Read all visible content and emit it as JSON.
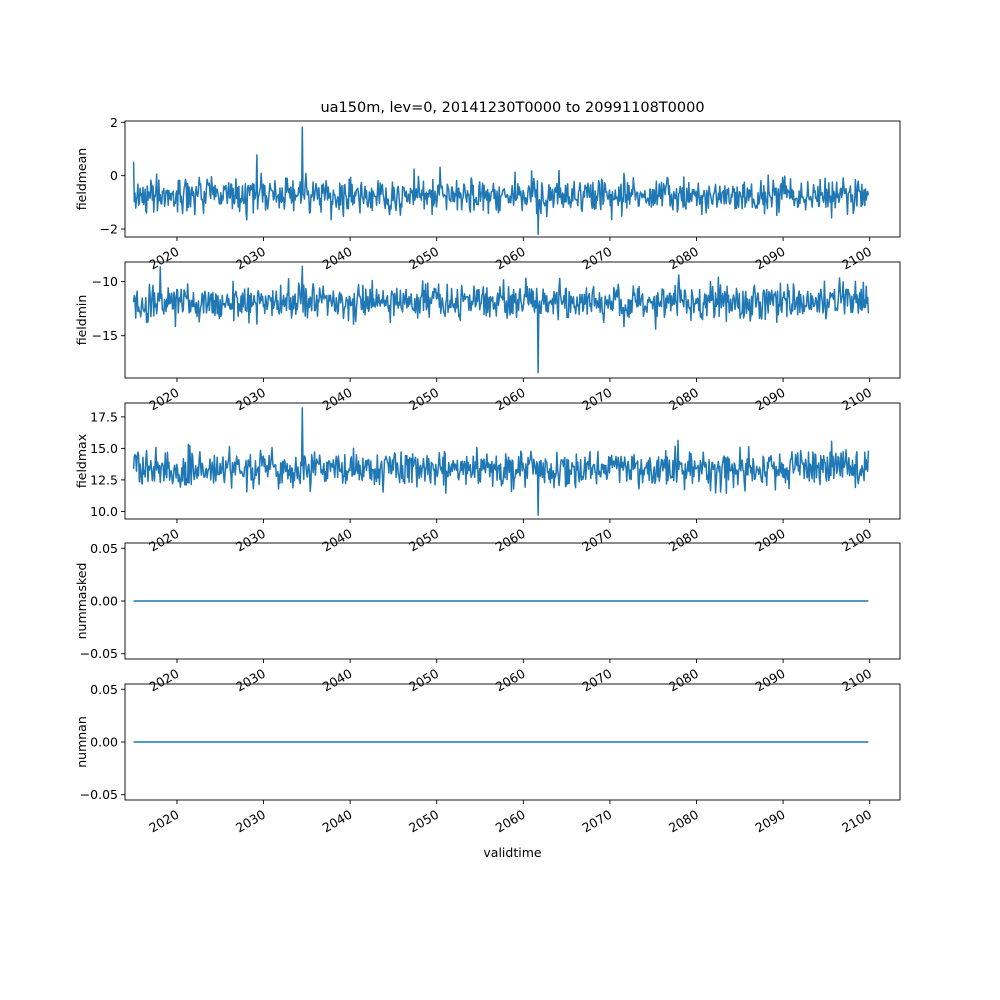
{
  "chart_data": [
    {
      "type": "line",
      "title": "ua150m, lev=0, 20141230T0000 to 20991108T0000",
      "xlabel": "",
      "ylabel": "fieldmean",
      "xlim": [
        2014.0,
        2103.5
      ],
      "ylim": [
        -2.3,
        2.05
      ],
      "yticks": [
        -2,
        0,
        2
      ],
      "xticks": [
        2020,
        2030,
        2040,
        2050,
        2060,
        2070,
        2080,
        2090,
        2100
      ],
      "series_color": "#1f77b4",
      "series": [
        {
          "x_start": 2014.99,
          "x_end": 2099.85,
          "n": 1020,
          "mean": -0.75,
          "spread": 0.55,
          "min": -2.2,
          "max": 1.82
        }
      ]
    },
    {
      "type": "line",
      "xlabel": "",
      "ylabel": "fieldmin",
      "xlim": [
        2014.0,
        2103.5
      ],
      "ylim": [
        -18.9,
        -8.2
      ],
      "yticks": [
        -15,
        -10
      ],
      "xticks": [
        2020,
        2030,
        2040,
        2050,
        2060,
        2070,
        2080,
        2090,
        2100
      ],
      "series_color": "#1f77b4",
      "series": [
        {
          "x_start": 2014.99,
          "x_end": 2099.85,
          "n": 1020,
          "mean": -11.9,
          "spread": 1.3,
          "min": -18.4,
          "max": -8.6
        }
      ]
    },
    {
      "type": "line",
      "xlabel": "",
      "ylabel": "fieldmax",
      "xlim": [
        2014.0,
        2103.5
      ],
      "ylim": [
        9.4,
        18.6
      ],
      "yticks": [
        10.0,
        12.5,
        15.0,
        17.5
      ],
      "xticks": [
        2020,
        2030,
        2040,
        2050,
        2060,
        2070,
        2080,
        2090,
        2100
      ],
      "series_color": "#1f77b4",
      "series": [
        {
          "x_start": 2014.99,
          "x_end": 2099.85,
          "n": 1020,
          "mean": 13.4,
          "spread": 1.15,
          "min": 9.7,
          "max": 18.2
        }
      ]
    },
    {
      "type": "line",
      "xlabel": "",
      "ylabel": "nummasked",
      "xlim": [
        2014.0,
        2103.5
      ],
      "ylim": [
        -0.055,
        0.055
      ],
      "yticks": [
        -0.05,
        0.0,
        0.05
      ],
      "xticks": [
        2020,
        2030,
        2040,
        2050,
        2060,
        2070,
        2080,
        2090,
        2100
      ],
      "series_color": "#1f77b4",
      "series": [
        {
          "x": [
            2014.99,
            2099.85
          ],
          "y": [
            0.0,
            0.0
          ]
        }
      ]
    },
    {
      "type": "line",
      "xlabel": "validtime",
      "ylabel": "numnan",
      "xlim": [
        2014.0,
        2103.5
      ],
      "ylim": [
        -0.055,
        0.055
      ],
      "yticks": [
        -0.05,
        0.0,
        0.05
      ],
      "xticks": [
        2020,
        2030,
        2040,
        2050,
        2060,
        2070,
        2080,
        2090,
        2100
      ],
      "series_color": "#1f77b4",
      "series": [
        {
          "x": [
            2014.99,
            2099.85
          ],
          "y": [
            0.0,
            0.0
          ]
        }
      ]
    }
  ]
}
